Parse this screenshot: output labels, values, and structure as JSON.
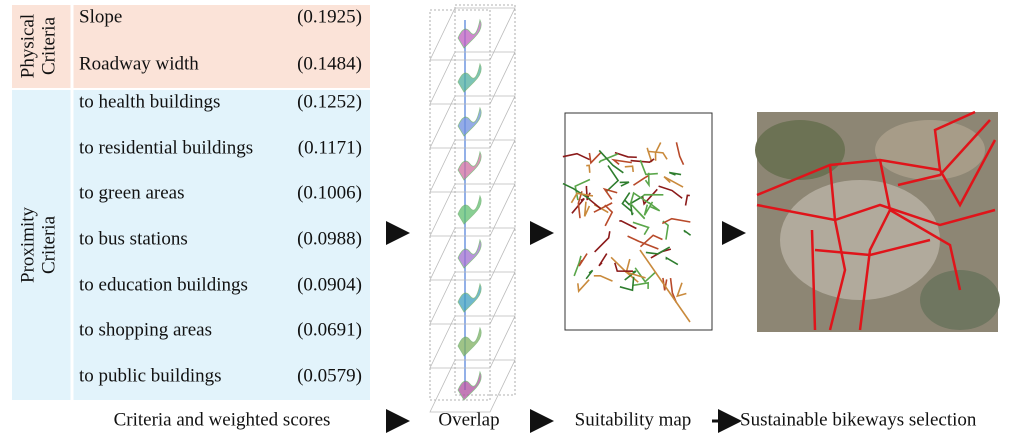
{
  "criteria": {
    "groups": [
      {
        "label_lines": [
          "Physical",
          "Criteria"
        ],
        "items": [
          {
            "name": "Slope",
            "weight": "(0.1925)"
          },
          {
            "name": "Roadway width",
            "weight": "(0.1484)"
          }
        ]
      },
      {
        "label_lines": [
          "Proximity",
          "Criteria"
        ],
        "items": [
          {
            "name": "to health buildings",
            "weight": "(0.1252)"
          },
          {
            "name": "to residential buildings",
            "weight": "(0.1171)"
          },
          {
            "name": "to green areas",
            "weight": "(0.1006)"
          },
          {
            "name": "to bus stations",
            "weight": "(0.0988)"
          },
          {
            "name": "to education buildings",
            "weight": "(0.0904)"
          },
          {
            "name": "to shopping areas",
            "weight": "(0.0691)"
          },
          {
            "name": "to public buildings",
            "weight": "(0.0579)"
          }
        ]
      }
    ]
  },
  "steps": [
    "Criteria and weighted scores",
    "Overlap",
    "Suitability map",
    "Sustainable bikeways selection"
  ]
}
